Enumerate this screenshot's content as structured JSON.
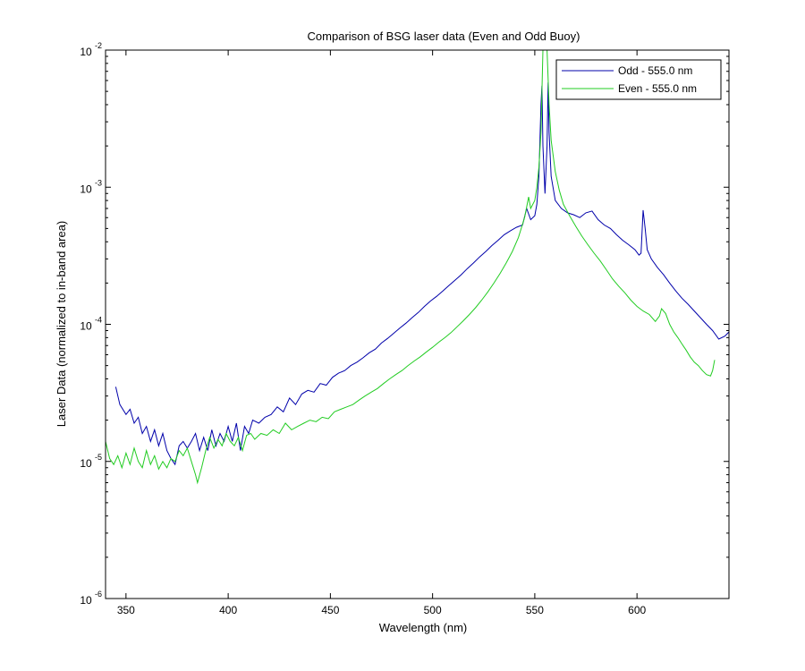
{
  "chart_data": {
    "type": "line",
    "title": "Comparison of BSG laser data (Even and Odd Buoy)",
    "xlabel": "Wavelength (nm)",
    "ylabel": "Laser Data (normalized to in-band area)",
    "xlim": [
      340,
      645
    ],
    "ylim": [
      1e-06,
      0.01
    ],
    "yscale": "log",
    "grid": false,
    "legend_position": "top-right",
    "x_ticks": [
      350,
      400,
      450,
      500,
      550,
      600
    ],
    "x_tick_labels": [
      "350",
      "400",
      "450",
      "500",
      "550",
      "600"
    ],
    "y_ticks": [
      {
        "value": 0.01,
        "base": "10",
        "exp": "-2"
      },
      {
        "value": 0.001,
        "base": "10",
        "exp": "-3"
      },
      {
        "value": 0.0001,
        "base": "10",
        "exp": "-4"
      },
      {
        "value": 1e-05,
        "base": "10",
        "exp": "-5"
      },
      {
        "value": 1e-06,
        "base": "10",
        "exp": "-6"
      }
    ],
    "series": [
      {
        "name": "Odd - 555.0 nm",
        "color": "#0000aa",
        "points": [
          [
            345,
            3.5e-05
          ],
          [
            347,
            2.6e-05
          ],
          [
            350,
            2.2e-05
          ],
          [
            352,
            2.4e-05
          ],
          [
            354,
            1.9e-05
          ],
          [
            356,
            2.1e-05
          ],
          [
            358,
            1.6e-05
          ],
          [
            360,
            1.8e-05
          ],
          [
            362,
            1.4e-05
          ],
          [
            364,
            1.7e-05
          ],
          [
            366,
            1.3e-05
          ],
          [
            368,
            1.6e-05
          ],
          [
            370,
            1.2e-05
          ],
          [
            372,
            1.05e-05
          ],
          [
            374,
            9.5e-06
          ],
          [
            376,
            1.3e-05
          ],
          [
            378,
            1.4e-05
          ],
          [
            380,
            1.25e-05
          ],
          [
            382,
            1.4e-05
          ],
          [
            384,
            1.6e-05
          ],
          [
            386,
            1.2e-05
          ],
          [
            388,
            1.5e-05
          ],
          [
            390,
            1.2e-05
          ],
          [
            392,
            1.7e-05
          ],
          [
            394,
            1.3e-05
          ],
          [
            396,
            1.6e-05
          ],
          [
            398,
            1.4e-05
          ],
          [
            400,
            1.8e-05
          ],
          [
            402,
            1.4e-05
          ],
          [
            404,
            1.9e-05
          ],
          [
            406,
            1.2e-05
          ],
          [
            408,
            1.8e-05
          ],
          [
            410,
            1.6e-05
          ],
          [
            412,
            2e-05
          ],
          [
            415,
            1.9e-05
          ],
          [
            418,
            2.1e-05
          ],
          [
            421,
            2.2e-05
          ],
          [
            424,
            2.5e-05
          ],
          [
            427,
            2.3e-05
          ],
          [
            430,
            2.9e-05
          ],
          [
            433,
            2.6e-05
          ],
          [
            436,
            3.1e-05
          ],
          [
            439,
            3.3e-05
          ],
          [
            442,
            3.2e-05
          ],
          [
            445,
            3.7e-05
          ],
          [
            448,
            3.6e-05
          ],
          [
            451,
            4.1e-05
          ],
          [
            454,
            4.4e-05
          ],
          [
            457,
            4.6e-05
          ],
          [
            460,
            5e-05
          ],
          [
            463,
            5.3e-05
          ],
          [
            466,
            5.7e-05
          ],
          [
            469,
            6.2e-05
          ],
          [
            472,
            6.6e-05
          ],
          [
            475,
            7.3e-05
          ],
          [
            478,
            7.9e-05
          ],
          [
            481,
            8.6e-05
          ],
          [
            484,
            9.4e-05
          ],
          [
            487,
            0.000102
          ],
          [
            490,
            0.000112
          ],
          [
            493,
            0.000122
          ],
          [
            496,
            0.000135
          ],
          [
            499,
            0.000148
          ],
          [
            502,
            0.00016
          ],
          [
            505,
            0.000175
          ],
          [
            508,
            0.000192
          ],
          [
            511,
            0.00021
          ],
          [
            514,
            0.00023
          ],
          [
            517,
            0.000255
          ],
          [
            520,
            0.00028
          ],
          [
            523,
            0.00031
          ],
          [
            526,
            0.00034
          ],
          [
            529,
            0.000375
          ],
          [
            532,
            0.00041
          ],
          [
            535,
            0.00045
          ],
          [
            538,
            0.00048
          ],
          [
            541,
            0.00051
          ],
          [
            544,
            0.00053
          ],
          [
            546,
            0.0007
          ],
          [
            548,
            0.00058
          ],
          [
            550,
            0.00062
          ],
          [
            551,
            0.00075
          ],
          [
            552,
            0.0012
          ],
          [
            553,
            0.004
          ],
          [
            553.5,
            0.0055
          ],
          [
            554,
            0.002
          ],
          [
            555,
            0.0009
          ],
          [
            556,
            0.002
          ],
          [
            556.5,
            0.0058
          ],
          [
            557,
            0.0025
          ],
          [
            558,
            0.0012
          ],
          [
            560,
            0.0008
          ],
          [
            563,
            0.0007
          ],
          [
            566,
            0.00065
          ],
          [
            569,
            0.00063
          ],
          [
            572,
            0.0006
          ],
          [
            575,
            0.00065
          ],
          [
            578,
            0.00067
          ],
          [
            581,
            0.00058
          ],
          [
            584,
            0.00053
          ],
          [
            587,
            0.0005
          ],
          [
            590,
            0.00045
          ],
          [
            593,
            0.00041
          ],
          [
            596,
            0.00038
          ],
          [
            599,
            0.00035
          ],
          [
            601,
            0.00032
          ],
          [
            602,
            0.00033
          ],
          [
            603,
            0.00068
          ],
          [
            604,
            0.0005
          ],
          [
            605,
            0.00035
          ],
          [
            607,
            0.0003
          ],
          [
            610,
            0.00026
          ],
          [
            613,
            0.00023
          ],
          [
            616,
            0.0002
          ],
          [
            619,
            0.000175
          ],
          [
            622,
            0.000155
          ],
          [
            625,
            0.00014
          ],
          [
            628,
            0.000125
          ],
          [
            631,
            0.000112
          ],
          [
            634,
            0.0001
          ],
          [
            637,
            9e-05
          ],
          [
            640,
            7.8e-05
          ],
          [
            643,
            8.2e-05
          ],
          [
            645,
            8.8e-05
          ]
        ]
      },
      {
        "name": "Even - 555.0 nm",
        "color": "#22cc22",
        "points": [
          [
            340,
            1.4e-05
          ],
          [
            342,
            1.05e-05
          ],
          [
            344,
            9.5e-06
          ],
          [
            346,
            1.1e-05
          ],
          [
            348,
            9e-06
          ],
          [
            350,
            1.15e-05
          ],
          [
            352,
            9.5e-06
          ],
          [
            354,
            1.25e-05
          ],
          [
            356,
            1e-05
          ],
          [
            358,
            9e-06
          ],
          [
            360,
            1.2e-05
          ],
          [
            362,
            9.5e-06
          ],
          [
            364,
            1.1e-05
          ],
          [
            366,
            8.8e-06
          ],
          [
            368,
            1e-05
          ],
          [
            370,
            9e-06
          ],
          [
            372,
            1.05e-05
          ],
          [
            374,
            1e-05
          ],
          [
            376,
            1.2e-05
          ],
          [
            378,
            1.1e-05
          ],
          [
            380,
            1.25e-05
          ],
          [
            382,
            1e-05
          ],
          [
            384,
            8e-06
          ],
          [
            385,
            7e-06
          ],
          [
            387,
            9e-06
          ],
          [
            389,
            1.2e-05
          ],
          [
            391,
            1.5e-05
          ],
          [
            393,
            1.25e-05
          ],
          [
            395,
            1.45e-05
          ],
          [
            397,
            1.3e-05
          ],
          [
            399,
            1.6e-05
          ],
          [
            401,
            1.4e-05
          ],
          [
            403,
            1.3e-05
          ],
          [
            405,
            1.5e-05
          ],
          [
            407,
            1.2e-05
          ],
          [
            409,
            1.55e-05
          ],
          [
            411,
            1.6e-05
          ],
          [
            413,
            1.45e-05
          ],
          [
            416,
            1.6e-05
          ],
          [
            419,
            1.55e-05
          ],
          [
            422,
            1.7e-05
          ],
          [
            425,
            1.6e-05
          ],
          [
            428,
            1.9e-05
          ],
          [
            431,
            1.7e-05
          ],
          [
            434,
            1.8e-05
          ],
          [
            437,
            1.9e-05
          ],
          [
            440,
            2e-05
          ],
          [
            443,
            1.95e-05
          ],
          [
            446,
            2.1e-05
          ],
          [
            449,
            2.05e-05
          ],
          [
            452,
            2.3e-05
          ],
          [
            455,
            2.4e-05
          ],
          [
            458,
            2.5e-05
          ],
          [
            461,
            2.6e-05
          ],
          [
            464,
            2.8e-05
          ],
          [
            467,
            3e-05
          ],
          [
            470,
            3.2e-05
          ],
          [
            473,
            3.4e-05
          ],
          [
            476,
            3.7e-05
          ],
          [
            479,
            4e-05
          ],
          [
            482,
            4.3e-05
          ],
          [
            485,
            4.6e-05
          ],
          [
            488,
            5e-05
          ],
          [
            491,
            5.4e-05
          ],
          [
            494,
            5.8e-05
          ],
          [
            497,
            6.3e-05
          ],
          [
            500,
            6.8e-05
          ],
          [
            503,
            7.4e-05
          ],
          [
            506,
            8e-05
          ],
          [
            509,
            8.7e-05
          ],
          [
            512,
            9.6e-05
          ],
          [
            515,
            0.000106
          ],
          [
            518,
            0.000118
          ],
          [
            521,
            0.000132
          ],
          [
            524,
            0.00015
          ],
          [
            527,
            0.000172
          ],
          [
            530,
            0.0002
          ],
          [
            533,
            0.000235
          ],
          [
            536,
            0.00028
          ],
          [
            539,
            0.00034
          ],
          [
            542,
            0.00043
          ],
          [
            545,
            0.0006
          ],
          [
            547,
            0.00085
          ],
          [
            548,
            0.0007
          ],
          [
            550,
            0.0008
          ],
          [
            551,
            0.001
          ],
          [
            552,
            0.0014
          ],
          [
            553,
            0.0025
          ],
          [
            554,
            0.01
          ],
          [
            555,
            0.01
          ],
          [
            556,
            0.01
          ],
          [
            557,
            0.004
          ],
          [
            558,
            0.0022
          ],
          [
            560,
            0.0013
          ],
          [
            562,
            0.00095
          ],
          [
            564,
            0.00075
          ],
          [
            567,
            0.00062
          ],
          [
            570,
            0.00052
          ],
          [
            573,
            0.00044
          ],
          [
            576,
            0.00038
          ],
          [
            579,
            0.00033
          ],
          [
            582,
            0.00029
          ],
          [
            585,
            0.00025
          ],
          [
            588,
            0.000215
          ],
          [
            591,
            0.00019
          ],
          [
            594,
            0.00017
          ],
          [
            597,
            0.00015
          ],
          [
            600,
            0.000135
          ],
          [
            603,
            0.000125
          ],
          [
            606,
            0.000118
          ],
          [
            609,
            0.000105
          ],
          [
            611,
            0.000115
          ],
          [
            612,
            0.00013
          ],
          [
            614,
            0.00012
          ],
          [
            616,
            0.0001
          ],
          [
            618,
            8.8e-05
          ],
          [
            620,
            8e-05
          ],
          [
            622,
            7.2e-05
          ],
          [
            624,
            6.5e-05
          ],
          [
            626,
            5.8e-05
          ],
          [
            628,
            5.3e-05
          ],
          [
            630,
            5e-05
          ],
          [
            632,
            4.6e-05
          ],
          [
            634,
            4.3e-05
          ],
          [
            636,
            4.2e-05
          ],
          [
            637,
            4.6e-05
          ],
          [
            638,
            5.5e-05
          ]
        ]
      }
    ]
  }
}
